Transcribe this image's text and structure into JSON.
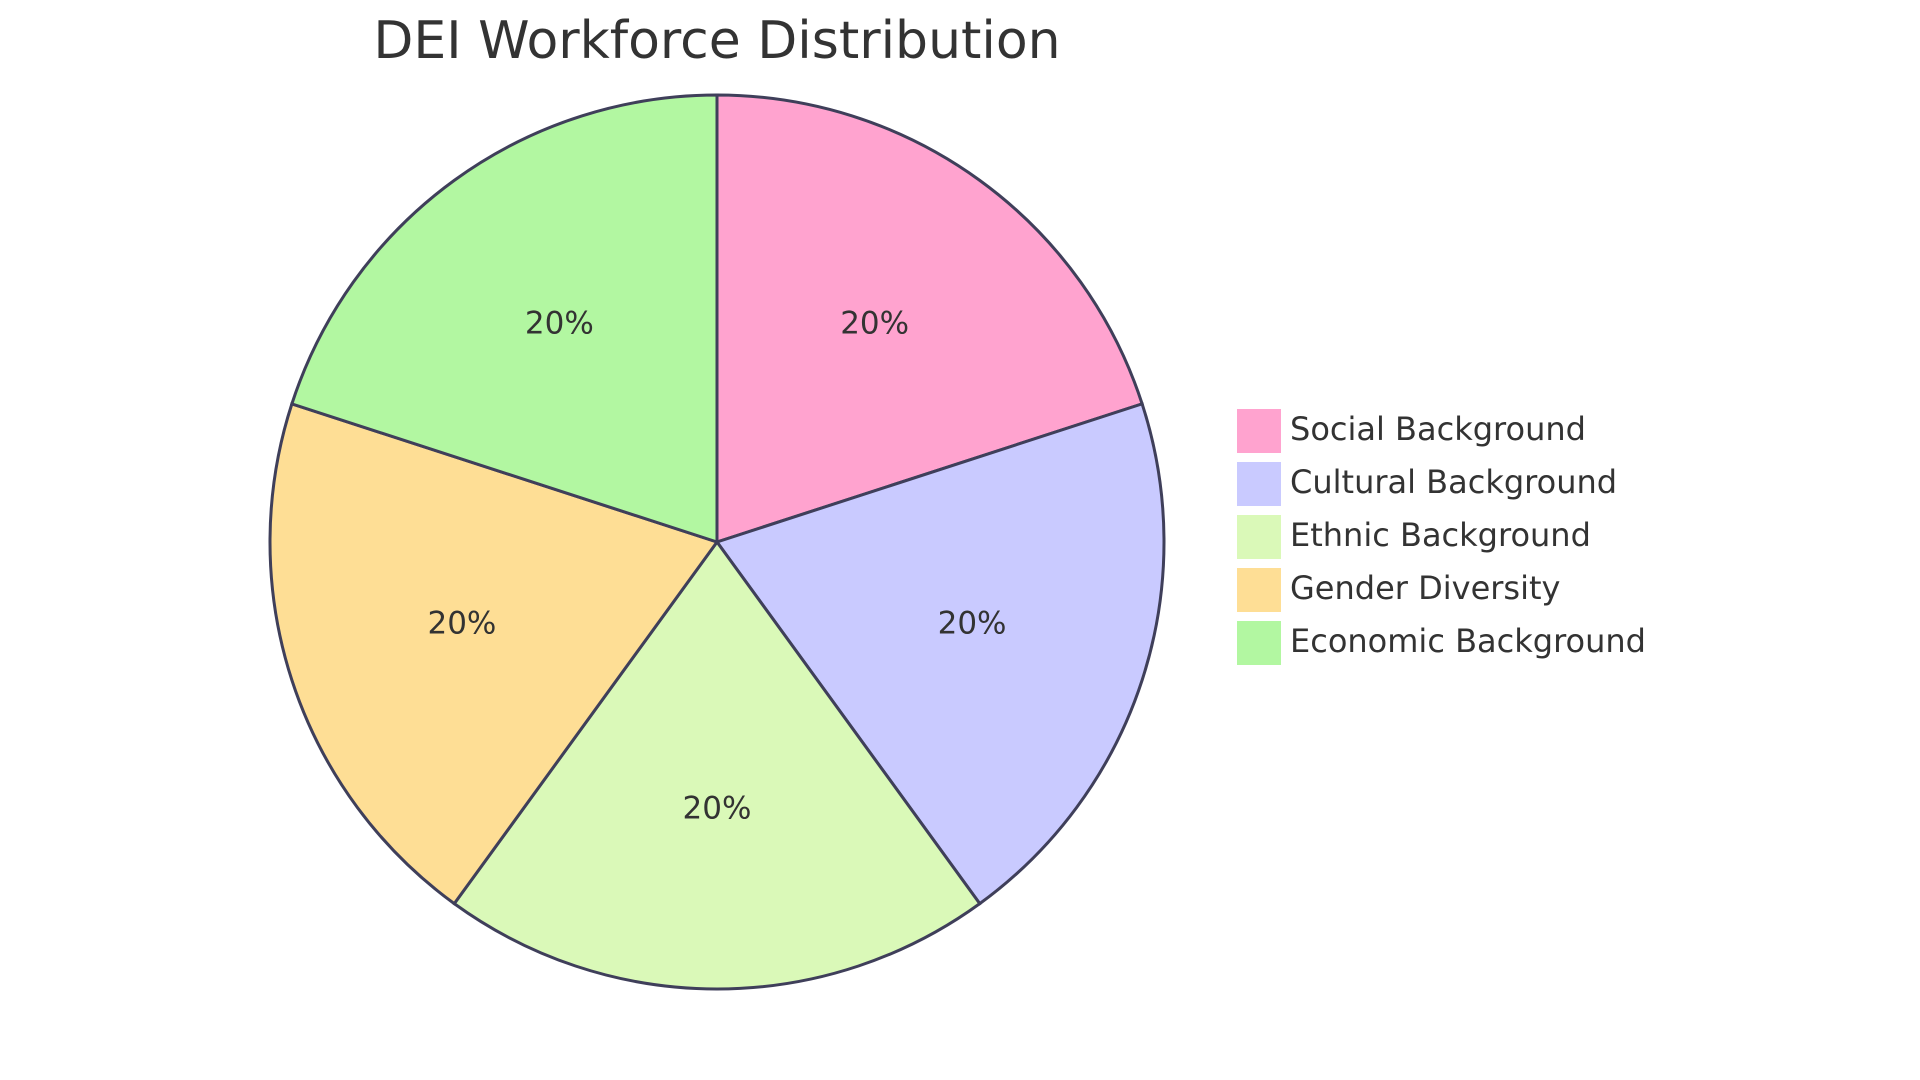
{
  "chart_data": {
    "type": "pie",
    "title": "DEI Workforce Distribution",
    "slices": [
      {
        "name": "Social Background",
        "value": 20,
        "label": "20%",
        "color": "#FFA3CF"
      },
      {
        "name": "Cultural Background",
        "value": 20,
        "label": "20%",
        "color": "#C9CAFF"
      },
      {
        "name": "Ethnic Background",
        "value": 20,
        "label": "20%",
        "color": "#DAF9B8"
      },
      {
        "name": "Gender Diversity",
        "value": 20,
        "label": "20%",
        "color": "#FEDE95"
      },
      {
        "name": "Economic Background",
        "value": 20,
        "label": "20%",
        "color": "#B2F7A1"
      }
    ],
    "legend_placement": "right",
    "outline_color": "#3F3F5A"
  }
}
